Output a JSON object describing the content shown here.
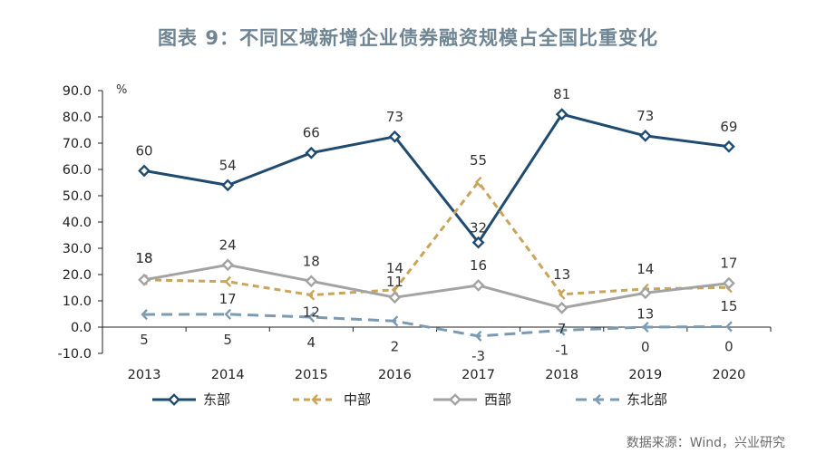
{
  "title": "图表 9：不同区域新增企业债券融资规模占全国比重变化",
  "source": "数据来源：Wind，兴业研究",
  "chart_data": {
    "type": "line",
    "title": "图表 9：不同区域新增企业债券融资规模占全国比重变化",
    "ylabel": "%",
    "xlabel": "",
    "ylim": [
      -10,
      90
    ],
    "yticks": [
      "90.0",
      "80.0",
      "70.0",
      "60.0",
      "50.0",
      "40.0",
      "30.0",
      "20.0",
      "10.0",
      "0.0",
      "-10.0"
    ],
    "ytick_values": [
      90,
      80,
      70,
      60,
      50,
      40,
      30,
      20,
      10,
      0,
      -10
    ],
    "categories": [
      "2013",
      "2014",
      "2015",
      "2016",
      "2017",
      "2018",
      "2019",
      "2020"
    ],
    "legend_position": "bottom",
    "series": [
      {
        "name": "东部",
        "color": "#204b70",
        "dash": "solid",
        "values": [
          59.5,
          54,
          66.3,
          72.5,
          32.2,
          81,
          72.8,
          68.7
        ],
        "labels": [
          "60",
          "54",
          "66",
          "73",
          "32",
          "81",
          "73",
          "69"
        ]
      },
      {
        "name": "中部",
        "color": "#c9a45a",
        "dash": "dashed",
        "values": [
          18,
          17.3,
          12.2,
          14.2,
          55.2,
          12.5,
          14.5,
          15.1
        ],
        "labels": [
          "18",
          "17",
          "12",
          "14",
          "55",
          "13",
          "14",
          "15"
        ]
      },
      {
        "name": "西部",
        "color": "#a3a3a3",
        "dash": "solid",
        "values": [
          18,
          23.7,
          17.5,
          11.3,
          15.9,
          7.3,
          13,
          16.7
        ],
        "labels": [
          "18",
          "24",
          "18",
          "11",
          "16",
          "7",
          "13",
          "17"
        ]
      },
      {
        "name": "东北部",
        "color": "#7b9bb2",
        "dash": "longdash",
        "values": [
          4.8,
          4.9,
          3.8,
          2.3,
          -3.4,
          -1.2,
          0,
          0.2
        ],
        "labels": [
          "5",
          "5",
          "4",
          "2",
          "-3",
          "-1",
          "0",
          "0"
        ]
      }
    ]
  }
}
